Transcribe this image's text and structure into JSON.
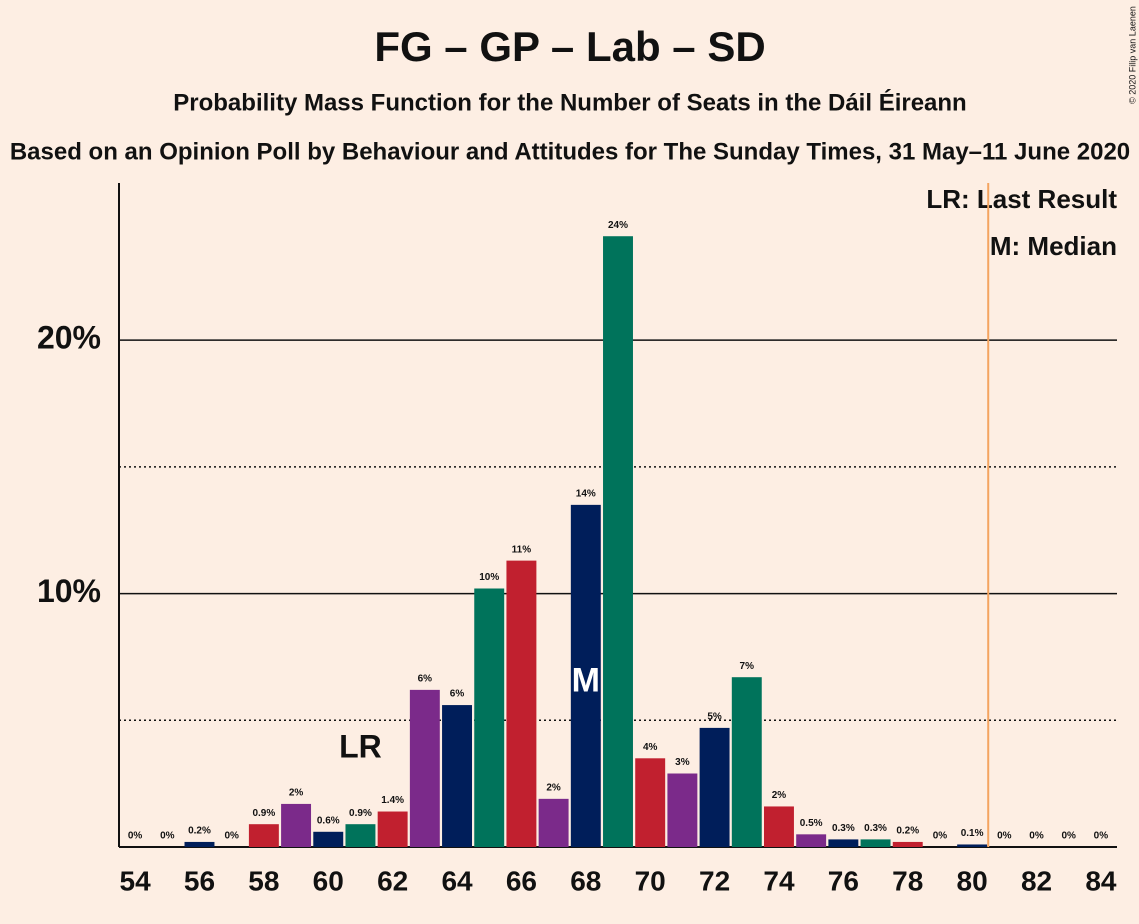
{
  "chart_data": {
    "type": "bar",
    "title": "FG – GP – Lab – SD",
    "subtitle": "Probability Mass Function for the Number of Seats in the Dáil Éireann",
    "caption": "Based on an Opinion Poll by Behaviour and Attitudes for The Sunday Times, 31 May–11 June 2020",
    "copyright": "© 2020 Filip van Laenen",
    "x": [
      54,
      55,
      56,
      57,
      58,
      59,
      60,
      61,
      62,
      63,
      64,
      65,
      66,
      67,
      68,
      69,
      70,
      71,
      72,
      73,
      74,
      75,
      76,
      77,
      78,
      79,
      80,
      81,
      82,
      83,
      84
    ],
    "values": [
      0,
      0,
      0.2,
      0,
      0.9,
      1.7,
      0.6,
      0.9,
      1.4,
      6.2,
      5.6,
      10.2,
      11.3,
      1.9,
      13.5,
      24.1,
      3.5,
      2.9,
      4.7,
      6.7,
      1.6,
      0.5,
      0.3,
      0.3,
      0.2,
      0,
      0.1,
      0,
      0,
      0,
      0
    ],
    "value_labels": [
      "0%",
      "0%",
      "0.2%",
      "0%",
      "0.9%",
      "2%",
      "0.6%",
      "0.9%",
      "1.4%",
      "6%",
      "6%",
      "10%",
      "11%",
      "2%",
      "14%",
      "24%",
      "4%",
      "3%",
      "5%",
      "7%",
      "2%",
      "0.5%",
      "0.3%",
      "0.3%",
      "0.2%",
      "0%",
      "0.1%",
      "0%",
      "0%",
      "0%",
      "0%"
    ],
    "palette": [
      "#c1202f",
      "#7b2a8a",
      "#001e5a",
      "#00735b"
    ],
    "xlim": [
      53.5,
      84.5
    ],
    "xticks": [
      54,
      56,
      58,
      60,
      62,
      64,
      66,
      68,
      70,
      72,
      74,
      76,
      78,
      80,
      82,
      84
    ],
    "ylim": [
      0,
      26.2
    ],
    "yticks": [
      {
        "value": 10,
        "label": "10%"
      },
      {
        "value": 20,
        "label": "20%"
      }
    ],
    "minor_yticks": [
      5,
      15
    ],
    "threshold_x": 80.5,
    "threshold_color": "#f4a460",
    "last_result": {
      "x": 61,
      "label": "LR"
    },
    "median": {
      "x": 68,
      "label": "M"
    },
    "legend": [
      "LR: Last Result",
      "M: Median"
    ]
  }
}
